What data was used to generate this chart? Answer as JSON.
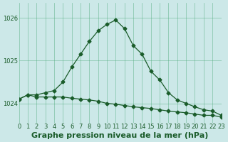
{
  "title": "Graphe pression niveau de la mer (hPa)",
  "background_color": "#cce8e8",
  "grid_color": "#4da87a",
  "line_color": "#1a5c2a",
  "x_min": 0,
  "x_max": 23,
  "y_min": 1023.55,
  "y_max": 1026.35,
  "yticks": [
    1024,
    1025,
    1026
  ],
  "xticks": [
    0,
    1,
    2,
    3,
    4,
    5,
    6,
    7,
    8,
    9,
    10,
    11,
    12,
    13,
    14,
    15,
    16,
    17,
    18,
    19,
    20,
    21,
    22,
    23
  ],
  "line_flat_x": [
    0,
    1,
    2,
    3,
    4,
    5,
    6,
    7,
    8,
    9,
    10,
    11,
    12,
    13,
    14,
    15,
    16,
    17,
    18,
    19,
    20,
    21,
    22,
    23
  ],
  "line_flat_y": [
    1024.1,
    1024.2,
    1024.15,
    1024.15,
    1024.15,
    1024.15,
    1024.12,
    1024.1,
    1024.08,
    1024.05,
    1024.0,
    1023.98,
    1023.95,
    1023.92,
    1023.9,
    1023.88,
    1023.85,
    1023.82,
    1023.8,
    1023.78,
    1023.75,
    1023.72,
    1023.72,
    1023.68
  ],
  "line_peak_x": [
    0,
    1,
    2,
    3,
    4,
    5,
    6,
    7,
    8,
    9,
    10,
    11,
    12,
    13,
    14,
    15,
    16,
    17,
    18,
    19,
    20,
    21,
    22,
    23
  ],
  "line_peak_y": [
    1024.1,
    1024.2,
    1024.2,
    1024.25,
    1024.3,
    1024.5,
    1024.85,
    1025.15,
    1025.45,
    1025.7,
    1025.85,
    1025.95,
    1025.75,
    1025.35,
    1025.15,
    1024.75,
    1024.55,
    1024.25,
    1024.08,
    1024.0,
    1023.92,
    1023.85,
    1023.82,
    1023.72
  ],
  "title_fontsize": 8
}
